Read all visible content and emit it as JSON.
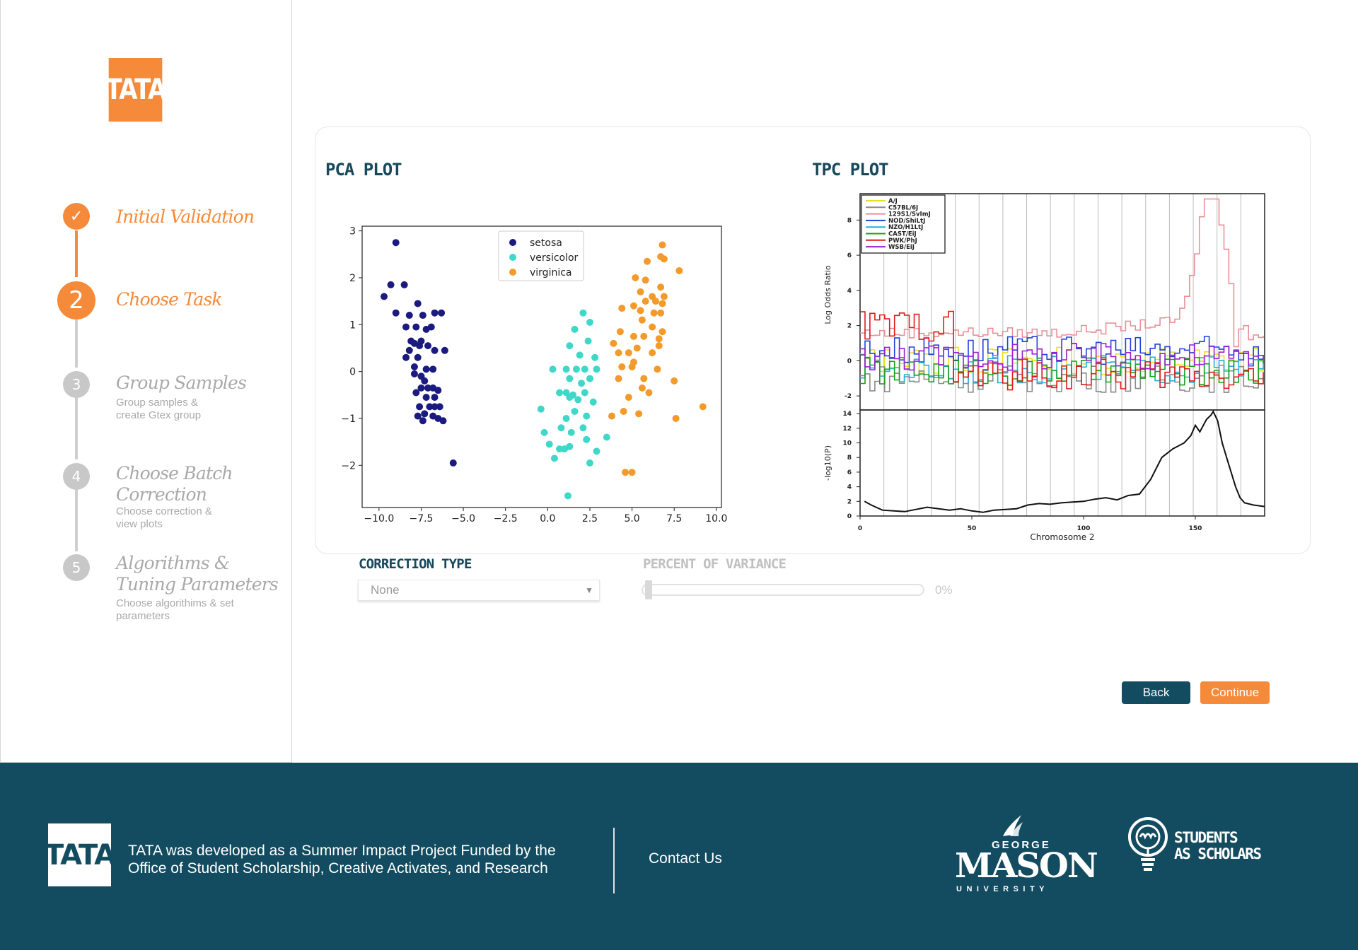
{
  "brand": {
    "logo_text": "TATA"
  },
  "steps": [
    {
      "number": "✓",
      "title": "Initial Validation",
      "subtitle": "",
      "state": "done"
    },
    {
      "number": "2",
      "title": "Choose Task",
      "subtitle": "",
      "state": "active"
    },
    {
      "number": "3",
      "title": "Group Samples",
      "subtitle": "Group samples & create Gtex group",
      "state": "pending"
    },
    {
      "number": "4",
      "title_lines": [
        "Choose Batch",
        "Correction"
      ],
      "subtitle": "Choose correction & view plots",
      "state": "pending"
    },
    {
      "number": "5",
      "title_lines": [
        "Algorithms &",
        "Tuning Parameters"
      ],
      "subtitle": "Choose algorithims & set parameters",
      "state": "pending"
    }
  ],
  "plots": {
    "pca_title": "PCA PLOT",
    "tpc_title": "TPC PLOT"
  },
  "chart_data": [
    {
      "type": "scatter",
      "title": "",
      "xlabel": "",
      "ylabel": "",
      "xlim": [
        -11,
        10.3
      ],
      "ylim": [
        -2.9,
        3.1
      ],
      "xticks": [
        "−10.0",
        "−7.5",
        "−5.0",
        "−2.5",
        "0.0",
        "2.5",
        "5.0",
        "7.5",
        "10.0"
      ],
      "yticks": [
        "−2",
        "−1",
        "0",
        "1",
        "2",
        "3"
      ],
      "legend": "top-center",
      "series": [
        {
          "name": "setosa",
          "color": "#1a1a80",
          "points": [
            [
              -9,
              2.75
            ],
            [
              -9.3,
              1.85
            ],
            [
              -8.5,
              1.85
            ],
            [
              -9.7,
              1.6
            ],
            [
              -9,
              1.25
            ],
            [
              -7.7,
              1.45
            ],
            [
              -8.2,
              1.2
            ],
            [
              -7.4,
              1.2
            ],
            [
              -6.7,
              1.25
            ],
            [
              -6.3,
              1.25
            ],
            [
              -8.4,
              0.95
            ],
            [
              -7.8,
              0.95
            ],
            [
              -7.2,
              0.9
            ],
            [
              -6.9,
              0.95
            ],
            [
              -8.1,
              0.65
            ],
            [
              -7.9,
              0.6
            ],
            [
              -7.5,
              0.65
            ],
            [
              -7.6,
              0.55
            ],
            [
              -7.1,
              0.55
            ],
            [
              -6.7,
              0.45
            ],
            [
              -6.1,
              0.45
            ],
            [
              -8.2,
              0.45
            ],
            [
              -8.4,
              0.3
            ],
            [
              -7.7,
              0.3
            ],
            [
              -7.9,
              0.1
            ],
            [
              -7.2,
              0.05
            ],
            [
              -6.8,
              0.05
            ],
            [
              -7.9,
              -0.05
            ],
            [
              -7.5,
              -0.1
            ],
            [
              -7.3,
              -0.2
            ],
            [
              -7.5,
              -0.35
            ],
            [
              -7.1,
              -0.35
            ],
            [
              -6.8,
              -0.35
            ],
            [
              -6.5,
              -0.4
            ],
            [
              -7.8,
              -0.45
            ],
            [
              -7.2,
              -0.55
            ],
            [
              -6.7,
              -0.55
            ],
            [
              -7.6,
              -0.75
            ],
            [
              -7,
              -0.75
            ],
            [
              -6.7,
              -0.75
            ],
            [
              -6.4,
              -0.75
            ],
            [
              -7.3,
              -0.9
            ],
            [
              -6.8,
              -0.95
            ],
            [
              -7.7,
              -0.95
            ],
            [
              -7.4,
              -1.05
            ],
            [
              -6.5,
              -1
            ],
            [
              -6.2,
              -1.05
            ],
            [
              -5.6,
              -1.95
            ]
          ]
        },
        {
          "name": "versicolor",
          "color": "#3fd8c8",
          "points": [
            [
              2.1,
              1.25
            ],
            [
              2.5,
              1.05
            ],
            [
              1.6,
              0.9
            ],
            [
              2.4,
              0.65
            ],
            [
              1.3,
              0.55
            ],
            [
              1.9,
              0.35
            ],
            [
              2.8,
              0.3
            ],
            [
              0.3,
              0.05
            ],
            [
              1.1,
              0.05
            ],
            [
              1.7,
              0.05
            ],
            [
              2.2,
              0.05
            ],
            [
              2.9,
              0.05
            ],
            [
              1.3,
              -0.15
            ],
            [
              2.5,
              -0.15
            ],
            [
              2,
              -0.25
            ],
            [
              0.7,
              -0.45
            ],
            [
              1.1,
              -0.45
            ],
            [
              1.5,
              -0.5
            ],
            [
              2.2,
              -0.45
            ],
            [
              1.8,
              -0.6
            ],
            [
              1.3,
              -0.55
            ],
            [
              2.7,
              -0.65
            ],
            [
              -0.4,
              -0.8
            ],
            [
              1.6,
              -0.85
            ],
            [
              2.3,
              -0.95
            ],
            [
              1.1,
              -1
            ],
            [
              0.8,
              -1.2
            ],
            [
              1.4,
              -1.3
            ],
            [
              2.1,
              -1.2
            ],
            [
              -0.2,
              -1.3
            ],
            [
              2.3,
              -1.45
            ],
            [
              3.5,
              -1.4
            ],
            [
              0.1,
              -1.55
            ],
            [
              0.7,
              -1.65
            ],
            [
              1,
              -1.65
            ],
            [
              1.3,
              -1.6
            ],
            [
              2.9,
              -1.7
            ],
            [
              0.4,
              -1.85
            ],
            [
              2.5,
              -1.95
            ],
            [
              1.2,
              -2.65
            ]
          ]
        },
        {
          "name": "virginica",
          "color": "#f39a2b",
          "points": [
            [
              6.8,
              2.7
            ],
            [
              6.7,
              2.45
            ],
            [
              6.9,
              2.4
            ],
            [
              5.9,
              2.35
            ],
            [
              7.8,
              2.15
            ],
            [
              5.2,
              2
            ],
            [
              5.8,
              1.95
            ],
            [
              6.7,
              1.8
            ],
            [
              5.5,
              1.7
            ],
            [
              6.2,
              1.6
            ],
            [
              6.9,
              1.6
            ],
            [
              5.8,
              1.5
            ],
            [
              6.4,
              1.5
            ],
            [
              6.8,
              1.45
            ],
            [
              5.1,
              1.4
            ],
            [
              5.5,
              1.3
            ],
            [
              6.3,
              1.25
            ],
            [
              6.7,
              1.25
            ],
            [
              4.4,
              1.35
            ],
            [
              5.6,
              1.1
            ],
            [
              6.2,
              0.95
            ],
            [
              4.3,
              0.85
            ],
            [
              6.8,
              0.85
            ],
            [
              5.1,
              0.75
            ],
            [
              5.7,
              0.75
            ],
            [
              6.6,
              0.7
            ],
            [
              3.9,
              0.6
            ],
            [
              5.3,
              0.5
            ],
            [
              6.6,
              0.55
            ],
            [
              4.2,
              0.4
            ],
            [
              4.8,
              0.4
            ],
            [
              6.2,
              0.4
            ],
            [
              5.1,
              0.2
            ],
            [
              4.4,
              0.1
            ],
            [
              5,
              0.1
            ],
            [
              6.5,
              0.05
            ],
            [
              4.2,
              -0.15
            ],
            [
              5.7,
              -0.15
            ],
            [
              7.5,
              -0.2
            ],
            [
              5.6,
              -0.35
            ],
            [
              6,
              -0.45
            ],
            [
              4.8,
              -0.55
            ],
            [
              9.2,
              -0.75
            ],
            [
              3.8,
              -0.95
            ],
            [
              4.5,
              -0.85
            ],
            [
              5.4,
              -0.9
            ],
            [
              7.6,
              -1
            ],
            [
              4.6,
              -2.15
            ],
            [
              5,
              -2.15
            ]
          ]
        }
      ]
    },
    {
      "type": "line",
      "title": "",
      "panels": [
        {
          "ylabel": "Log Odds Ratio",
          "yticks": [
            "8",
            "6",
            "4",
            "2",
            "0",
            "-2"
          ],
          "ylim": [
            -2.8,
            9.5
          ],
          "legend": "top-left",
          "series": [
            {
              "name": "A/J",
              "color": "#e6e01f"
            },
            {
              "name": "C57BL/6J",
              "color": "#8a8a8a"
            },
            {
              "name": "129S1/SvImJ",
              "color": "#e89098"
            },
            {
              "name": "NOD/ShiLtJ",
              "color": "#2340d8"
            },
            {
              "name": "NZO/H1LtJ",
              "color": "#22b0d8"
            },
            {
              "name": "CAST/EiJ",
              "color": "#1aa01a"
            },
            {
              "name": "PWK/PhJ",
              "color": "#e01a1a"
            },
            {
              "name": "WSB/EiJ",
              "color": "#9a20d0"
            }
          ]
        },
        {
          "ylabel": "-log10(P)",
          "yticks": [
            "14",
            "12",
            "10",
            "8",
            "6",
            "4",
            "2",
            "0"
          ],
          "ylim": [
            0,
            14.5
          ],
          "xticks": [
            "0",
            "50",
            "100",
            "150"
          ],
          "xlabel": "Chromosome 2",
          "xlim": [
            0,
            181
          ],
          "series": [
            {
              "name": "",
              "color": "#111111",
              "points": [
                [
                  2,
                  2
                ],
                [
                  5,
                  1.5
                ],
                [
                  10,
                  0.8
                ],
                [
                  20,
                  0.6
                ],
                [
                  25,
                  0.9
                ],
                [
                  30,
                  1.2
                ],
                [
                  40,
                  0.8
                ],
                [
                  45,
                  1
                ],
                [
                  50,
                  0.7
                ],
                [
                  55,
                  0.5
                ],
                [
                  60,
                  0.8
                ],
                [
                  70,
                  1
                ],
                [
                  75,
                  1.5
                ],
                [
                  80,
                  1.7
                ],
                [
                  85,
                  1.6
                ],
                [
                  90,
                  1.8
                ],
                [
                  95,
                  1.9
                ],
                [
                  100,
                  2
                ],
                [
                  105,
                  2.3
                ],
                [
                  110,
                  2.5
                ],
                [
                  115,
                  2.2
                ],
                [
                  120,
                  2.8
                ],
                [
                  125,
                  3
                ],
                [
                  130,
                  5
                ],
                [
                  135,
                  8
                ],
                [
                  140,
                  9.2
                ],
                [
                  145,
                  10
                ],
                [
                  148,
                  11
                ],
                [
                  150,
                  12.4
                ],
                [
                  152,
                  11.5
                ],
                [
                  155,
                  13.2
                ],
                [
                  157,
                  13.8
                ],
                [
                  158,
                  14.3
                ],
                [
                  160,
                  13
                ],
                [
                  162,
                  10
                ],
                [
                  165,
                  7
                ],
                [
                  168,
                  4
                ],
                [
                  170,
                  2.5
                ],
                [
                  172,
                  1.8
                ],
                [
                  176,
                  1.5
                ],
                [
                  181,
                  1.3
                ]
              ]
            }
          ]
        }
      ]
    }
  ],
  "controls": {
    "correction_type_label": "CORRECTION TYPE",
    "correction_type_value": "None",
    "percent_variance_label": "PERCENT OF VARIANCE",
    "percent_variance_value": "0%",
    "percent_variance_fraction": 0
  },
  "buttons": {
    "back": "Back",
    "continue": "Continue"
  },
  "footer": {
    "logo_text": "TATA",
    "line1": "TATA was developed as a Summer Impact Project Funded by the",
    "line2": "Office of Student Scholarship, Creative Activates, and Research",
    "contact": "Contact Us",
    "gmu_george": "GEORGE",
    "gmu_mason": "MASON",
    "gmu_university": "UNIVERSITY",
    "sas_line1": "STUDENTS",
    "sas_line2": "AS SCHOLARS"
  },
  "colors": {
    "accent": "#f58a3a",
    "navy": "#134c60",
    "muted": "#a9a9a9",
    "line_grey": "#cfcfcf"
  }
}
